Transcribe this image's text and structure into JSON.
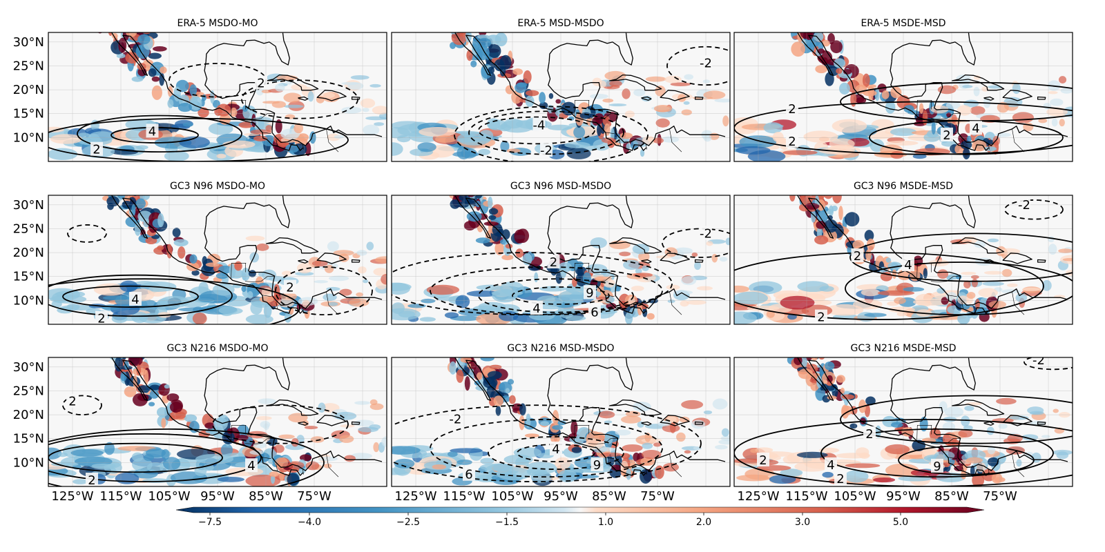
{
  "figure": {
    "panels": [
      {
        "title": "ERA-5 MSDO-MO",
        "contour_labels": [
          "4",
          "2",
          "2"
        ]
      },
      {
        "title": "ERA-5 MSD-MSDO",
        "contour_labels": [
          "-4",
          "-2",
          "-2"
        ]
      },
      {
        "title": "ERA-5 MSDE-MSD",
        "contour_labels": [
          "2",
          "2",
          "4",
          "2"
        ]
      },
      {
        "title": "GC3 N96 MSDO-MO",
        "contour_labels": [
          "4",
          "2",
          "2"
        ]
      },
      {
        "title": "GC3 N96 MSD-MSDO",
        "contour_labels": [
          "2",
          "9",
          "4",
          "6",
          "-2"
        ]
      },
      {
        "title": "GC3 N96 MSDE-MSD",
        "contour_labels": [
          "2",
          "4",
          "2",
          "-2"
        ]
      },
      {
        "title": "GC3 N216 MSDO-MO",
        "contour_labels": [
          "2",
          "2",
          "4"
        ]
      },
      {
        "title": "GC3 N216 MSD-MSDO",
        "contour_labels": [
          "-2",
          "4",
          "9",
          "6"
        ]
      },
      {
        "title": "GC3 N216 MSDE-MSD",
        "contour_labels": [
          "2",
          "2",
          "4",
          "9",
          "2",
          "-2"
        ]
      }
    ],
    "lat_ticks": [
      "30°N",
      "25°N",
      "20°N",
      "15°N",
      "10°N"
    ],
    "lon_ticks": [
      "125°W",
      "115°W",
      "105°W",
      "95°W",
      "85°W",
      "75°W"
    ],
    "colorbar": {
      "tick_labels": [
        "−7.5",
        "−4.0",
        "−2.5",
        "−1.5",
        "1.0",
        "2.0",
        "3.0",
        "5.0"
      ],
      "colors": [
        "#053061",
        "#2166ac",
        "#4393c3",
        "#92c5de",
        "#d1e5f0",
        "#f7f7f7",
        "#fddbc7",
        "#f4a582",
        "#d6604d",
        "#b2182b",
        "#67001f"
      ]
    }
  }
}
